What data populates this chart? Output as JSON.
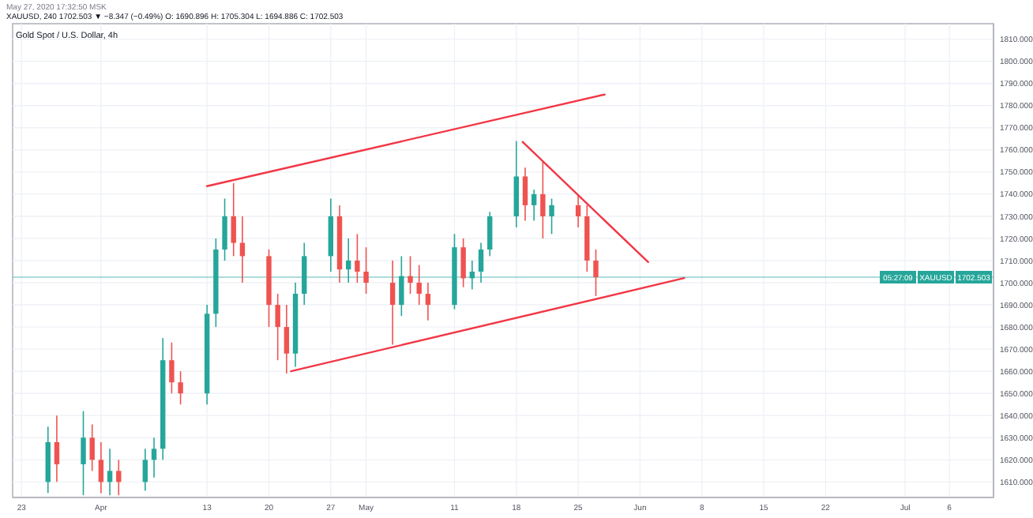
{
  "chart_data": {
    "type": "candlestick",
    "subtitle": "Gold Spot / U.S. Dollar, 4h",
    "annotations": [
      "May 27, 2020 17:32:50 MSK",
      "XAUUSD, 240 1702.503 ▼ −8.347 (−0.49%) O: 1690.896 H: 1705.304 L: 1694.886 C: 1702.503",
      "XAUUSD",
      "05:27:09"
    ],
    "xlim": [
      "2020-03-22",
      "2020-07-11"
    ],
    "xticks": [
      {
        "value": "2020-03-23",
        "label": "23"
      },
      {
        "value": "2020-04-01",
        "label": "Apr"
      },
      {
        "value": "2020-04-13",
        "label": "13"
      },
      {
        "value": "2020-04-20",
        "label": "20"
      },
      {
        "value": "2020-04-27",
        "label": "27"
      },
      {
        "value": "2020-05-01",
        "label": "May"
      },
      {
        "value": "2020-05-11",
        "label": "11"
      },
      {
        "value": "2020-05-18",
        "label": "18"
      },
      {
        "value": "2020-05-25",
        "label": "25"
      },
      {
        "value": "2020-06-01",
        "label": "Jun"
      },
      {
        "value": "2020-06-08",
        "label": "8"
      },
      {
        "value": "2020-06-15",
        "label": "15"
      },
      {
        "value": "2020-06-22",
        "label": "22"
      },
      {
        "value": "2020-07-01",
        "label": "Jul"
      },
      {
        "value": "2020-07-06",
        "label": "6"
      }
    ],
    "ylim": [
      1603,
      1817
    ],
    "yticks": [
      {
        "value": 1610,
        "label": "1610.000"
      },
      {
        "value": 1620,
        "label": "1620.000"
      },
      {
        "value": 1630,
        "label": "1630.000"
      },
      {
        "value": 1640,
        "label": "1640.000"
      },
      {
        "value": 1650,
        "label": "1650.000"
      },
      {
        "value": 1660,
        "label": "1660.000"
      },
      {
        "value": 1670,
        "label": "1670.000"
      },
      {
        "value": 1680,
        "label": "1680.000"
      },
      {
        "value": 1690,
        "label": "1690.000"
      },
      {
        "value": 1700,
        "label": "1700.000"
      },
      {
        "value": 1710,
        "label": "1710.000"
      },
      {
        "value": 1720,
        "label": "1720.000"
      },
      {
        "value": 1730,
        "label": "1730.000"
      },
      {
        "value": 1740,
        "label": "1740.000"
      },
      {
        "value": 1750,
        "label": "1750.000"
      },
      {
        "value": 1760,
        "label": "1760.000"
      },
      {
        "value": 1770,
        "label": "1770.000"
      },
      {
        "value": 1780,
        "label": "1780.000"
      },
      {
        "value": 1790,
        "label": "1790.000"
      },
      {
        "value": 1800,
        "label": "1800.000"
      },
      {
        "value": 1810,
        "label": "1810.000"
      }
    ],
    "grid": true,
    "ref_lines": [
      {
        "axis": "y",
        "value": 1702.503,
        "label": "1702.503",
        "color": "#26a69a"
      }
    ],
    "series": [
      {
        "x": [
          "2020-03-26",
          "2020-03-27",
          "2020-03-30",
          "2020-03-31",
          "2020-04-01",
          "2020-04-02",
          "2020-04-03",
          "2020-04-06",
          "2020-04-07",
          "2020-04-08",
          "2020-04-09",
          "2020-04-10",
          "2020-04-13",
          "2020-04-14",
          "2020-04-15",
          "2020-04-16",
          "2020-04-17",
          "2020-04-20",
          "2020-04-21",
          "2020-04-22",
          "2020-04-23",
          "2020-04-24",
          "2020-04-27",
          "2020-04-28",
          "2020-04-29",
          "2020-04-30",
          "2020-05-01",
          "2020-05-04",
          "2020-05-05",
          "2020-05-06",
          "2020-05-07",
          "2020-05-08",
          "2020-05-11",
          "2020-05-12",
          "2020-05-13",
          "2020-05-14",
          "2020-05-15",
          "2020-05-18",
          "2020-05-19",
          "2020-05-20",
          "2020-05-21",
          "2020-05-22",
          "2020-05-25",
          "2020-05-26",
          "2020-05-27"
        ],
        "ohlc": [
          [
            1610,
            1635,
            1605,
            1628
          ],
          [
            1628,
            1640,
            1610,
            1618
          ],
          [
            1618,
            1642,
            1604,
            1630
          ],
          [
            1630,
            1636,
            1615,
            1620
          ],
          [
            1620,
            1628,
            1605,
            1610
          ],
          [
            1610,
            1625,
            1604,
            1615
          ],
          [
            1615,
            1620,
            1604,
            1610
          ],
          [
            1610,
            1625,
            1606,
            1620
          ],
          [
            1620,
            1630,
            1612,
            1625
          ],
          [
            1625,
            1675,
            1620,
            1665
          ],
          [
            1665,
            1673,
            1650,
            1655
          ],
          [
            1655,
            1660,
            1645,
            1650
          ],
          [
            1650,
            1690,
            1645,
            1686
          ],
          [
            1686,
            1720,
            1680,
            1715
          ],
          [
            1715,
            1738,
            1710,
            1730
          ],
          [
            1730,
            1745,
            1712,
            1718
          ],
          [
            1718,
            1730,
            1700,
            1712
          ],
          [
            1712,
            1715,
            1680,
            1690
          ],
          [
            1690,
            1695,
            1665,
            1680
          ],
          [
            1680,
            1690,
            1659,
            1668
          ],
          [
            1668,
            1700,
            1662,
            1695
          ],
          [
            1695,
            1718,
            1690,
            1712
          ],
          [
            1712,
            1738,
            1705,
            1730
          ],
          [
            1730,
            1735,
            1700,
            1706
          ],
          [
            1706,
            1720,
            1700,
            1710
          ],
          [
            1710,
            1722,
            1700,
            1705
          ],
          [
            1705,
            1716,
            1695,
            1700
          ],
          [
            1700,
            1710,
            1672,
            1690
          ],
          [
            1690,
            1712,
            1685,
            1703
          ],
          [
            1703,
            1712,
            1695,
            1700
          ],
          [
            1700,
            1708,
            1690,
            1695
          ],
          [
            1695,
            1700,
            1683,
            1690
          ],
          [
            1690,
            1722,
            1688,
            1716
          ],
          [
            1716,
            1720,
            1698,
            1702
          ],
          [
            1702,
            1710,
            1697,
            1705
          ],
          [
            1705,
            1718,
            1700,
            1715
          ],
          [
            1715,
            1732,
            1712,
            1730
          ],
          [
            1730,
            1764,
            1725,
            1748
          ],
          [
            1748,
            1752,
            1728,
            1735
          ],
          [
            1735,
            1742,
            1728,
            1740
          ],
          [
            1740,
            1755,
            1720,
            1730
          ],
          [
            1730,
            1738,
            1722,
            1735
          ],
          [
            1735,
            1740,
            1725,
            1730
          ],
          [
            1730,
            1735,
            1705,
            1710
          ],
          [
            1710,
            1715,
            1694,
            1702.5
          ]
        ],
        "colors": [
          "#26a69a",
          "#ef5350",
          "#26a69a",
          "#ef5350",
          "#ef5350",
          "#26a69a",
          "#ef5350",
          "#26a69a",
          "#26a69a",
          "#26a69a",
          "#ef5350",
          "#ef5350",
          "#26a69a",
          "#26a69a",
          "#26a69a",
          "#ef5350",
          "#ef5350",
          "#ef5350",
          "#ef5350",
          "#ef5350",
          "#26a69a",
          "#26a69a",
          "#26a69a",
          "#ef5350",
          "#26a69a",
          "#ef5350",
          "#ef5350",
          "#ef5350",
          "#26a69a",
          "#ef5350",
          "#ef5350",
          "#ef5350",
          "#26a69a",
          "#ef5350",
          "#26a69a",
          "#26a69a",
          "#26a69a",
          "#26a69a",
          "#ef5350",
          "#26a69a",
          "#ef5350",
          "#26a69a",
          "#ef5350",
          "#ef5350",
          "#ef5350"
        ]
      },
      {
        "type": "line",
        "color": "#f23645",
        "x": [
          "2020-04-13",
          "2020-05-28"
        ],
        "values": [
          1743.6,
          1785
        ]
      },
      {
        "type": "line",
        "color": "#f23645",
        "x": [
          "2020-04-22T12:00",
          "2020-06-06"
        ],
        "values": [
          1660,
          1702.1
        ]
      },
      {
        "type": "line",
        "color": "#f23645",
        "x": [
          "2020-05-18T17:00",
          "2020-06-01T22:00"
        ],
        "values": [
          1763.6,
          1709.3
        ]
      }
    ]
  }
}
